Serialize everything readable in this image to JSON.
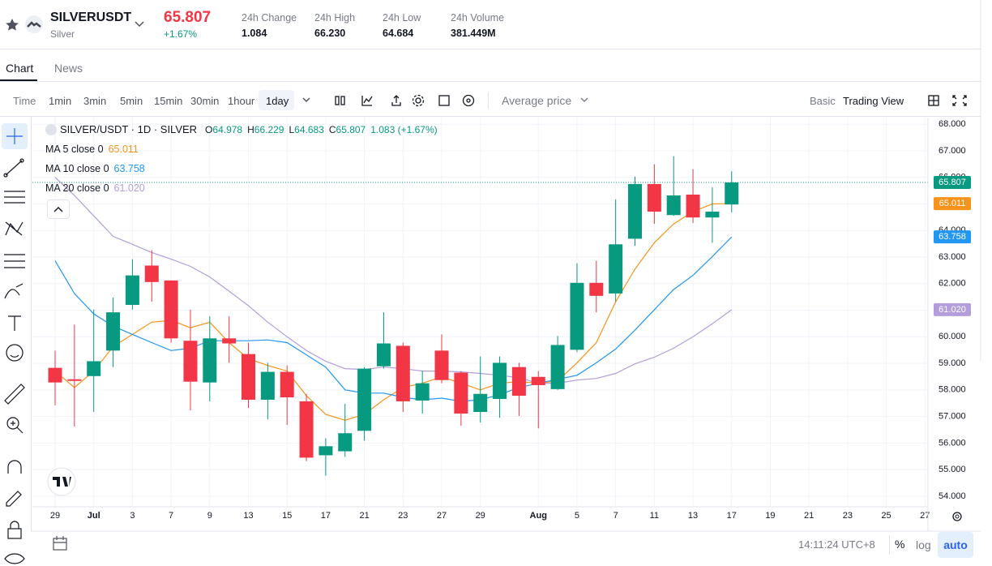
{
  "header": {
    "symbol": "SILVERUSDT",
    "name": "Silver",
    "price": "65.807",
    "change_pct": "+1.67%",
    "stats": [
      {
        "label": "24h Change",
        "value": "1.084"
      },
      {
        "label": "24h High",
        "value": "66.230"
      },
      {
        "label": "24h Low",
        "value": "64.684"
      },
      {
        "label": "24h Volume",
        "value": "381.449M"
      }
    ]
  },
  "tabs": [
    "Chart",
    "News"
  ],
  "toolbar": {
    "intervals": [
      "Time",
      "1min",
      "3min",
      "5min",
      "15min",
      "30min",
      "1hour",
      "1day"
    ],
    "price_mode": "Average price",
    "views": [
      "Basic",
      "Trading View"
    ]
  },
  "footer": {
    "time": "14:11:24 UTC+8",
    "options": [
      "%",
      "log",
      "auto"
    ]
  },
  "chart_data": {
    "type": "candlestick",
    "title": "SILVER/USDT · 1D · SILVER",
    "legend_ohlc": [
      {
        "key": "O",
        "value": "64.978"
      },
      {
        "key": "H",
        "value": "66.229"
      },
      {
        "key": "L",
        "value": "64.683"
      },
      {
        "key": "C",
        "value": "65.807"
      }
    ],
    "legend_change": "1.083 (+1.67%)",
    "categories": [
      "29",
      null,
      "Jul",
      null,
      "3",
      null,
      "7",
      null,
      "9",
      null,
      "13",
      null,
      "15",
      null,
      "17",
      null,
      "21",
      null,
      "23",
      null,
      "27",
      null,
      "29",
      null,
      null,
      "Aug",
      null,
      "5",
      null,
      "7",
      null,
      "11",
      null,
      "13",
      null,
      "17"
    ],
    "future_categories": [
      "19",
      "21",
      "23",
      "25",
      "27"
    ],
    "open": [
      58.83,
      58.4,
      58.52,
      59.48,
      61.2,
      62.68,
      62.12,
      59.85,
      58.28,
      59.94,
      59.35,
      57.63,
      58.68,
      57.57,
      55.54,
      55.69,
      56.46,
      58.89,
      59.66,
      57.6,
      59.48,
      58.65,
      57.17,
      57.66,
      58.86,
      58.49,
      58.03,
      59.51,
      62.03,
      61.63,
      63.69,
      65.75,
      64.58,
      65.35,
      64.49,
      64.978
    ],
    "high": [
      59.48,
      60.46,
      61.02,
      61.48,
      62.92,
      63.26,
      62.12,
      61.02,
      60.77,
      60.77,
      59.78,
      59.02,
      58.92,
      57.85,
      56.18,
      57.48,
      58.86,
      60.92,
      59.78,
      58.71,
      60.09,
      58.71,
      59.26,
      59.26,
      59.02,
      58.71,
      60.03,
      62.77,
      62.86,
      65.17,
      66.03,
      66.49,
      66.8,
      66.31,
      65.63,
      66.229
    ],
    "low": [
      57.42,
      56.62,
      57.17,
      58.86,
      61.02,
      61.32,
      59.78,
      57.23,
      57.57,
      59.02,
      57.32,
      56.89,
      56.68,
      55.32,
      54.77,
      55.48,
      56.09,
      58.8,
      57.17,
      57.11,
      58.25,
      56.65,
      56.77,
      56.95,
      57.02,
      56.55,
      58.0,
      59.42,
      60.92,
      61.32,
      63.42,
      64.25,
      64.55,
      64.28,
      63.54,
      64.683
    ],
    "close": [
      58.28,
      58.34,
      59.08,
      60.92,
      62.31,
      62.06,
      59.94,
      58.31,
      59.94,
      59.75,
      57.63,
      58.68,
      57.72,
      55.45,
      55.88,
      56.37,
      58.8,
      59.75,
      57.57,
      58.25,
      58.37,
      57.11,
      57.85,
      59.02,
      57.78,
      58.18,
      59.69,
      62.03,
      61.54,
      63.48,
      65.75,
      64.71,
      65.32,
      64.49,
      64.71,
      65.807
    ],
    "up_color": "#089981",
    "down_color": "#f23645",
    "series": [
      {
        "name": "MA 5 close 0",
        "color": "#f7931a",
        "last_label": "65.011",
        "values": [
          58.71,
          58.09,
          58.71,
          59.63,
          60.09,
          60.55,
          60.62,
          60.34,
          60.55,
          59.78,
          59.17,
          58.92,
          58.71,
          57.78,
          57.08,
          56.86,
          57.08,
          57.63,
          58.09,
          58.25,
          58.49,
          58.25,
          58.0,
          58.25,
          58.31,
          58.25,
          58.34,
          59.02,
          59.78,
          61.32,
          62.55,
          63.54,
          64.25,
          64.71,
          65.0,
          65.011
        ]
      },
      {
        "name": "MA 10 close 0",
        "color": "#2196f3",
        "last_label": "63.758",
        "values": [
          62.86,
          61.63,
          60.86,
          60.4,
          60.09,
          59.78,
          59.48,
          59.57,
          59.85,
          59.85,
          59.85,
          59.88,
          59.78,
          59.32,
          58.86,
          58.0,
          57.88,
          57.88,
          57.72,
          57.63,
          57.69,
          57.57,
          57.63,
          57.82,
          58.09,
          58.25,
          58.4,
          58.55,
          59.02,
          59.54,
          60.25,
          61.02,
          61.78,
          62.31,
          63.02,
          63.758
        ]
      },
      {
        "name": "MA 20 close 0",
        "color": "#b39ddb",
        "last_label": "61.020",
        "values": [
          66.0,
          65.32,
          64.55,
          63.78,
          63.48,
          63.17,
          62.92,
          62.65,
          62.25,
          61.72,
          61.17,
          60.55,
          60.0,
          59.48,
          59.08,
          58.8,
          58.77,
          58.86,
          58.8,
          58.71,
          58.71,
          58.68,
          58.62,
          58.55,
          58.46,
          58.25,
          58.25,
          58.37,
          58.43,
          58.62,
          58.98,
          59.23,
          59.57,
          60.0,
          60.49,
          61.02
        ]
      }
    ],
    "ylim": [
      53.6,
      68.25
    ],
    "yticks": [
      {
        "value": 54,
        "label": "54.000"
      },
      {
        "value": 55,
        "label": "55.000"
      },
      {
        "value": 56,
        "label": "56.000"
      },
      {
        "value": 57,
        "label": "57.000"
      },
      {
        "value": 58,
        "label": "58.000"
      },
      {
        "value": 59,
        "label": "59.000"
      },
      {
        "value": 60,
        "label": "60.000"
      },
      {
        "value": 61,
        "label": "61.000"
      },
      {
        "value": 62,
        "label": "62.000"
      },
      {
        "value": 63,
        "label": "63.000"
      },
      {
        "value": 64,
        "label": "64.000"
      },
      {
        "value": 65,
        "label": "65.000"
      },
      {
        "value": 66,
        "label": "66.000"
      },
      {
        "value": 67,
        "label": "67.000"
      },
      {
        "value": 68,
        "label": "68.000"
      }
    ],
    "grid": true
  }
}
